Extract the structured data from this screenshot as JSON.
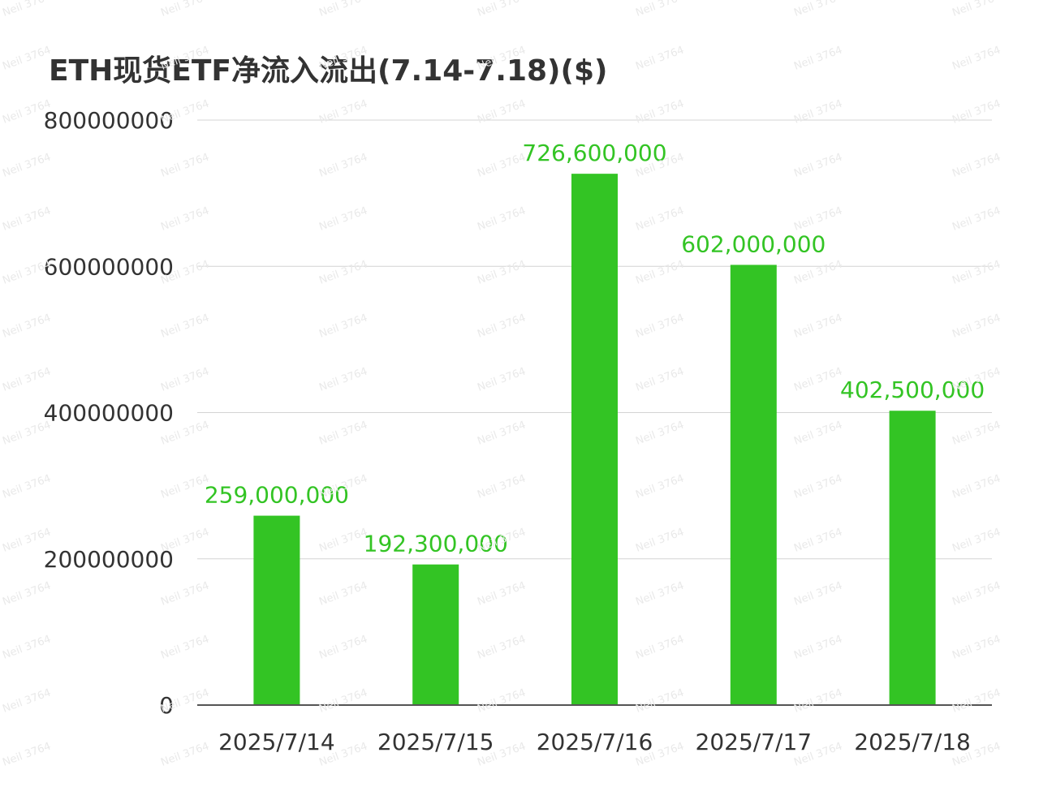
{
  "chart_data": {
    "type": "bar",
    "title": "ETH现货ETF净流入流出(7.14-7.18)($)",
    "categories": [
      "2025/7/14",
      "2025/7/15",
      "2025/7/16",
      "2025/7/17",
      "2025/7/18"
    ],
    "values": [
      259000000,
      192300000,
      726600000,
      602000000,
      402500000
    ],
    "data_labels": [
      "259,000,000",
      "192,300,000",
      "726,600,000",
      "602,000,000",
      "402,500,000"
    ],
    "y_ticks": [
      "0",
      "200000000",
      "400000000",
      "600000000",
      "800000000"
    ],
    "ylim": [
      0,
      800000000
    ],
    "xlabel": "",
    "ylabel": "",
    "grid": true,
    "legend": "none",
    "bar_color": "#33c424",
    "label_color": "#33c424"
  },
  "watermark": "Neil 3764"
}
